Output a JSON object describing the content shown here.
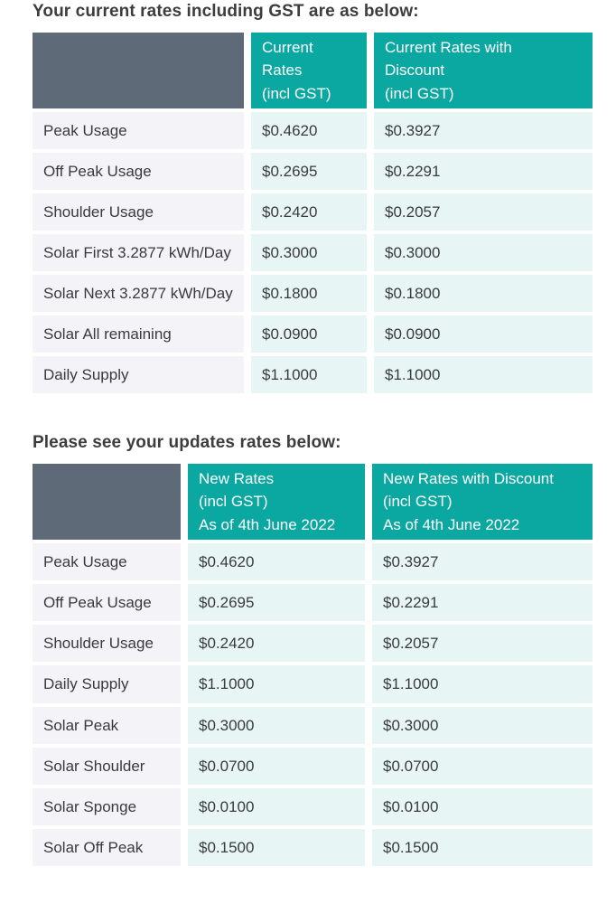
{
  "colors": {
    "teal_header_bg": "#0ba7a1",
    "slate_corner_bg": "#5f6a79",
    "label_cell_bg": "#f4f4f8",
    "value_cell_bg": "#e7f6f4",
    "heading_text": "#3d3d40",
    "cell_text": "#3a3a3c",
    "header_text": "#ffffff"
  },
  "current_rates": {
    "heading": "Your current rates including GST are as below:",
    "columns": {
      "rate": "Current\nRates\n(incl GST)",
      "discount": "Current Rates with\nDiscount\n(incl GST)"
    },
    "rows": [
      {
        "label": "Peak Usage",
        "rate": "$0.4620",
        "discount": "$0.3927"
      },
      {
        "label": "Off Peak Usage",
        "rate": "$0.2695",
        "discount": "$0.2291"
      },
      {
        "label": "Shoulder Usage",
        "rate": "$0.2420",
        "discount": "$0.2057"
      },
      {
        "label": "Solar First 3.2877 kWh/Day",
        "rate": "$0.3000",
        "discount": "$0.3000"
      },
      {
        "label": "Solar Next 3.2877 kWh/Day",
        "rate": "$0.1800",
        "discount": "$0.1800"
      },
      {
        "label": "Solar All remaining",
        "rate": "$0.0900",
        "discount": "$0.0900"
      },
      {
        "label": "Daily Supply",
        "rate": "$1.1000",
        "discount": "$1.1000"
      }
    ]
  },
  "new_rates": {
    "heading": "Please see your updates rates below:",
    "columns": {
      "rate": "New Rates\n(incl GST)\nAs of 4th June 2022",
      "discount": "New Rates with Discount\n(incl GST)\nAs of 4th June 2022"
    },
    "rows": [
      {
        "label": "Peak Usage",
        "rate": "$0.4620",
        "discount": "$0.3927"
      },
      {
        "label": "Off Peak Usage",
        "rate": "$0.2695",
        "discount": "$0.2291"
      },
      {
        "label": "Shoulder Usage",
        "rate": "$0.2420",
        "discount": "$0.2057"
      },
      {
        "label": "Daily Supply",
        "rate": "$1.1000",
        "discount": "$1.1000"
      },
      {
        "label": "Solar Peak",
        "rate": "$0.3000",
        "discount": "$0.3000"
      },
      {
        "label": "Solar Shoulder",
        "rate": "$0.0700",
        "discount": "$0.0700"
      },
      {
        "label": "Solar Sponge",
        "rate": "$0.0100",
        "discount": "$0.0100"
      },
      {
        "label": "Solar Off Peak",
        "rate": "$0.1500",
        "discount": "$0.1500"
      }
    ]
  }
}
